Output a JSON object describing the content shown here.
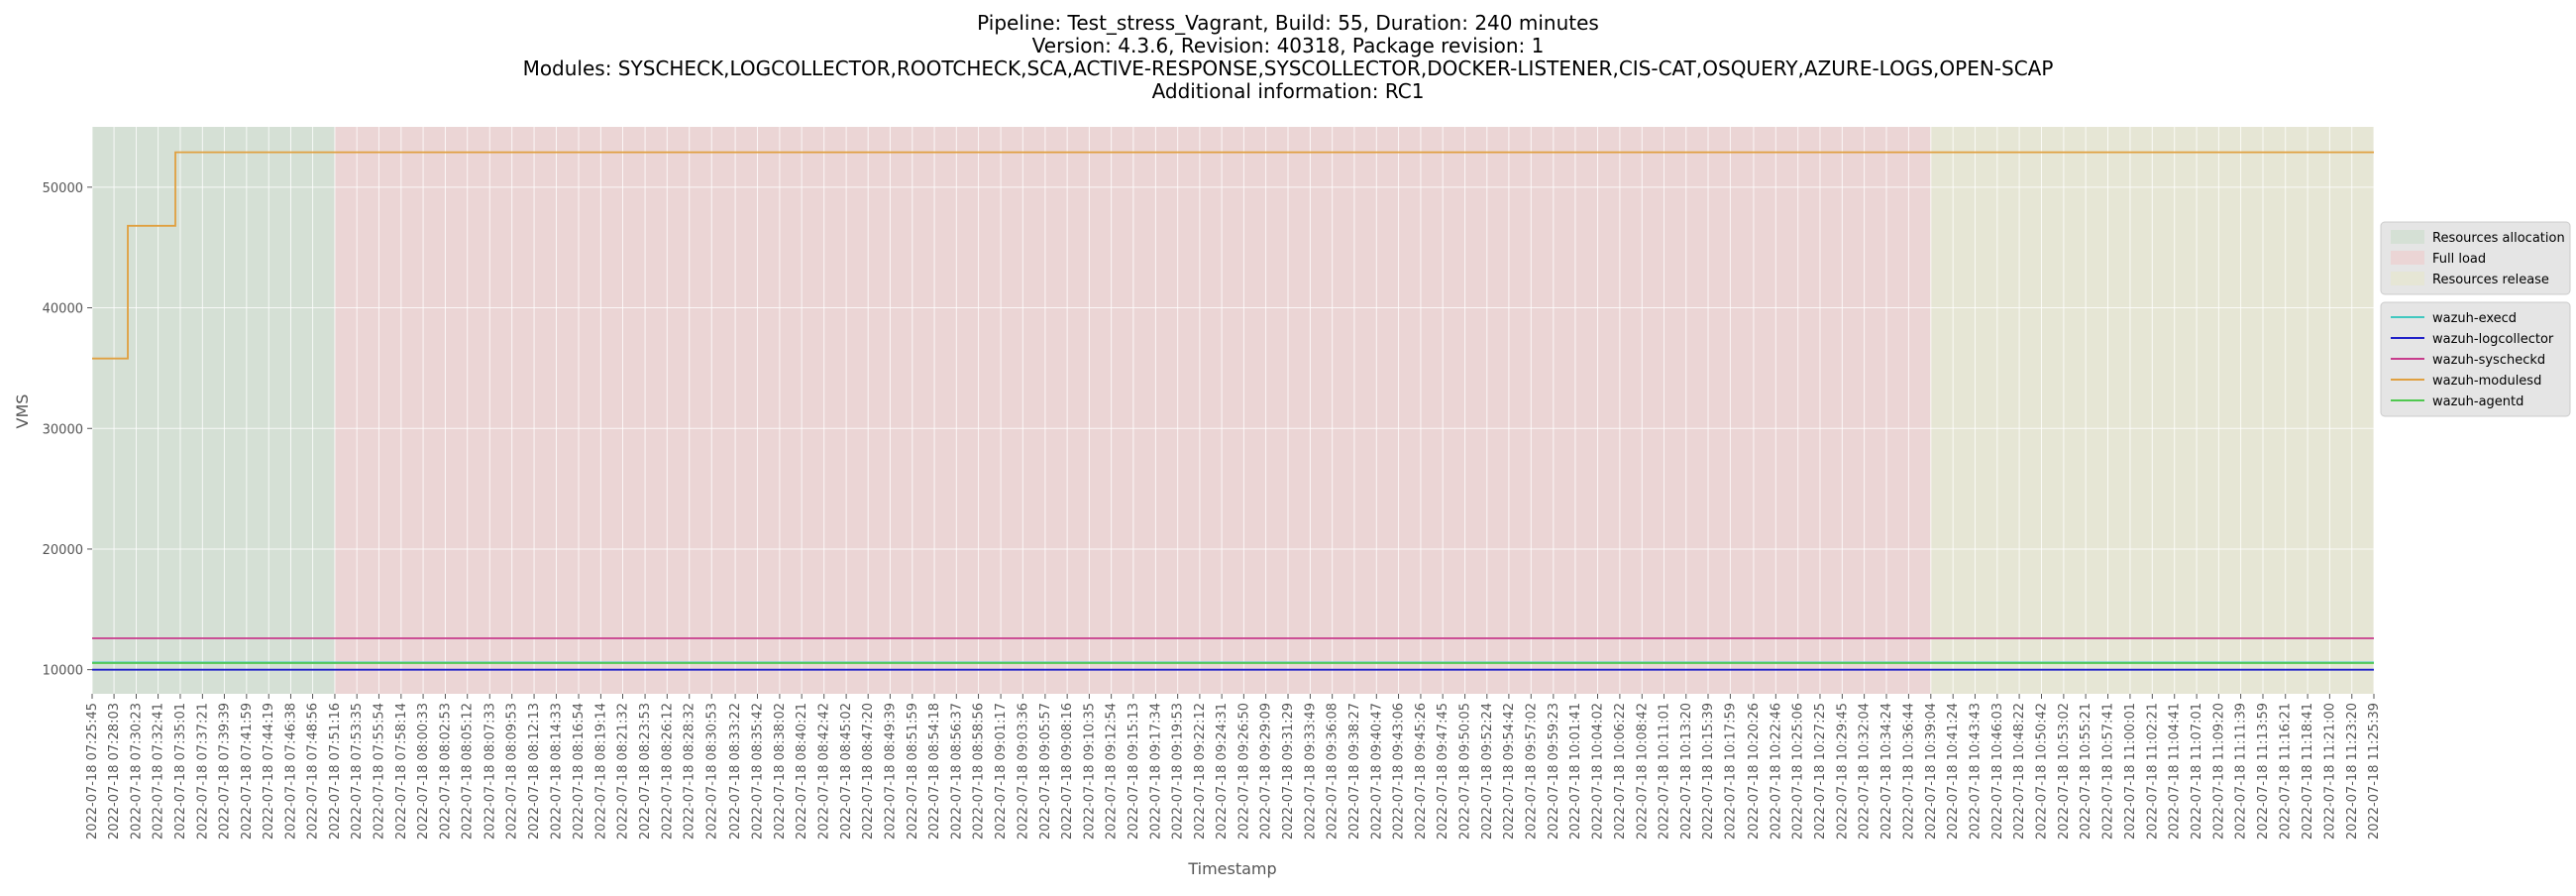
{
  "chart_data": {
    "type": "line",
    "title_lines": [
      "Pipeline: Test_stress_Vagrant, Build: 55, Duration: 240 minutes",
      "Version: 4.3.6, Revision: 40318, Package revision: 1",
      "Modules: SYSCHECK,LOGCOLLECTOR,ROOTCHECK,SCA,ACTIVE-RESPONSE,SYSCOLLECTOR,DOCKER-LISTENER,CIS-CAT,OSQUERY,AZURE-LOGS,OPEN-SCAP",
      "Additional information: RC1"
    ],
    "xlabel": "Timestamp",
    "ylabel": "VMS",
    "ylim": [
      8000,
      55000
    ],
    "yticks": [
      10000,
      20000,
      30000,
      40000,
      50000
    ],
    "grid": true,
    "legend_position": "right",
    "x_tick_labels": [
      "2022-07-18 07:25:45",
      "2022-07-18 07:28:03",
      "2022-07-18 07:30:23",
      "2022-07-18 07:32:41",
      "2022-07-18 07:35:01",
      "2022-07-18 07:37:21",
      "2022-07-18 07:39:39",
      "2022-07-18 07:41:59",
      "2022-07-18 07:44:19",
      "2022-07-18 07:46:38",
      "2022-07-18 07:48:56",
      "2022-07-18 07:51:16",
      "2022-07-18 07:53:35",
      "2022-07-18 07:55:54",
      "2022-07-18 07:58:14",
      "2022-07-18 08:00:33",
      "2022-07-18 08:02:53",
      "2022-07-18 08:05:12",
      "2022-07-18 08:07:33",
      "2022-07-18 08:09:53",
      "2022-07-18 08:12:13",
      "2022-07-18 08:14:33",
      "2022-07-18 08:16:54",
      "2022-07-18 08:19:14",
      "2022-07-18 08:21:32",
      "2022-07-18 08:23:53",
      "2022-07-18 08:26:12",
      "2022-07-18 08:28:32",
      "2022-07-18 08:30:53",
      "2022-07-18 08:33:22",
      "2022-07-18 08:35:42",
      "2022-07-18 08:38:02",
      "2022-07-18 08:40:21",
      "2022-07-18 08:42:42",
      "2022-07-18 08:45:02",
      "2022-07-18 08:47:20",
      "2022-07-18 08:49:39",
      "2022-07-18 08:51:59",
      "2022-07-18 08:54:18",
      "2022-07-18 08:56:37",
      "2022-07-18 08:58:56",
      "2022-07-18 09:01:17",
      "2022-07-18 09:03:36",
      "2022-07-18 09:05:57",
      "2022-07-18 09:08:16",
      "2022-07-18 09:10:35",
      "2022-07-18 09:12:54",
      "2022-07-18 09:15:13",
      "2022-07-18 09:17:34",
      "2022-07-18 09:19:53",
      "2022-07-18 09:22:12",
      "2022-07-18 09:24:31",
      "2022-07-18 09:26:50",
      "2022-07-18 09:29:09",
      "2022-07-18 09:31:29",
      "2022-07-18 09:33:49",
      "2022-07-18 09:36:08",
      "2022-07-18 09:38:27",
      "2022-07-18 09:40:47",
      "2022-07-18 09:43:06",
      "2022-07-18 09:45:26",
      "2022-07-18 09:47:45",
      "2022-07-18 09:50:05",
      "2022-07-18 09:52:24",
      "2022-07-18 09:54:42",
      "2022-07-18 09:57:02",
      "2022-07-18 09:59:23",
      "2022-07-18 10:01:41",
      "2022-07-18 10:04:02",
      "2022-07-18 10:06:22",
      "2022-07-18 10:08:42",
      "2022-07-18 10:11:01",
      "2022-07-18 10:13:20",
      "2022-07-18 10:15:39",
      "2022-07-18 10:17:59",
      "2022-07-18 10:20:26",
      "2022-07-18 10:22:46",
      "2022-07-18 10:25:06",
      "2022-07-18 10:27:25",
      "2022-07-18 10:29:45",
      "2022-07-18 10:32:04",
      "2022-07-18 10:34:24",
      "2022-07-18 10:36:44",
      "2022-07-18 10:39:04",
      "2022-07-18 10:41:24",
      "2022-07-18 10:43:43",
      "2022-07-18 10:46:03",
      "2022-07-18 10:48:22",
      "2022-07-18 10:50:42",
      "2022-07-18 10:53:02",
      "2022-07-18 10:55:21",
      "2022-07-18 10:57:41",
      "2022-07-18 11:00:01",
      "2022-07-18 11:02:21",
      "2022-07-18 11:04:41",
      "2022-07-18 11:07:01",
      "2022-07-18 11:09:20",
      "2022-07-18 11:11:39",
      "2022-07-18 11:13:59",
      "2022-07-18 11:16:21",
      "2022-07-18 11:18:41",
      "2022-07-18 11:21:00",
      "2022-07-18 11:23:20",
      "2022-07-18 11:25:39"
    ],
    "phases": [
      {
        "name": "Resources allocation",
        "color": "#c8dcc8",
        "start": "2022-07-18 07:25:45",
        "end": "2022-07-18 07:51:16"
      },
      {
        "name": "Full load",
        "color": "#f0c8c8",
        "start": "2022-07-18 07:51:16",
        "end": "2022-07-18 10:39:04"
      },
      {
        "name": "Resources release",
        "color": "#e8e8c8",
        "start": "2022-07-18 10:39:04",
        "end": "2022-07-18 11:25:39"
      }
    ],
    "series": [
      {
        "name": "wazuh-execd",
        "color": "#40c8c0",
        "points": [
          [
            "2022-07-18 07:25:45",
            10600
          ],
          [
            "2022-07-18 11:25:39",
            10600
          ]
        ]
      },
      {
        "name": "wazuh-logcollector",
        "color": "#2020c8",
        "points": [
          [
            "2022-07-18 07:25:45",
            10000
          ],
          [
            "2022-07-18 11:25:39",
            10000
          ]
        ]
      },
      {
        "name": "wazuh-syscheckd",
        "color": "#c83c8c",
        "points": [
          [
            "2022-07-18 07:25:45",
            12600
          ],
          [
            "2022-07-18 11:25:39",
            12600
          ]
        ]
      },
      {
        "name": "wazuh-modulesd",
        "color": "#e0a040",
        "points": [
          [
            "2022-07-18 07:25:45",
            35800
          ],
          [
            "2022-07-18 07:29:30",
            35800
          ],
          [
            "2022-07-18 07:29:30",
            46800
          ],
          [
            "2022-07-18 07:34:30",
            46800
          ],
          [
            "2022-07-18 07:34:30",
            52900
          ],
          [
            "2022-07-18 11:25:39",
            52900
          ]
        ]
      },
      {
        "name": "wazuh-agentd",
        "color": "#50c850",
        "points": [
          [
            "2022-07-18 07:25:45",
            10550
          ],
          [
            "2022-07-18 11:25:39",
            10550
          ]
        ]
      }
    ]
  }
}
